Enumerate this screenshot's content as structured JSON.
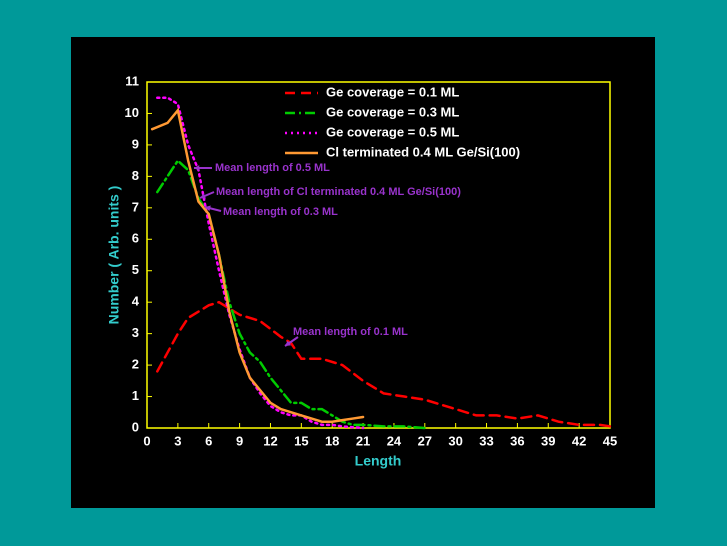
{
  "chart_data": {
    "type": "line",
    "xlabel": "Length",
    "ylabel": "Number ( Arb. units )",
    "xlim": [
      0,
      45
    ],
    "xticks": [
      0,
      3,
      6,
      9,
      12,
      15,
      18,
      21,
      24,
      27,
      30,
      33,
      36,
      39,
      42,
      45
    ],
    "ylim": [
      0,
      11
    ],
    "yticks": [
      0,
      1,
      2,
      3,
      4,
      5,
      6,
      7,
      8,
      9,
      10,
      11
    ],
    "legend": "upper center",
    "series": [
      {
        "name": "Ge coverage = 0.1 ML",
        "color": "#ff0000",
        "linestyle": "dashed",
        "x": [
          1,
          3,
          4,
          6,
          7,
          9,
          11,
          13,
          14,
          15,
          17,
          19,
          21,
          23,
          25,
          27,
          30,
          32,
          34,
          36,
          38,
          40,
          42,
          44,
          45
        ],
        "values": [
          1.8,
          3,
          3.5,
          3.9,
          4,
          3.6,
          3.4,
          2.9,
          2.7,
          2.2,
          2.2,
          2,
          1.5,
          1.1,
          1,
          0.9,
          0.6,
          0.4,
          0.4,
          0.3,
          0.4,
          0.2,
          0.1,
          0.1,
          0.05
        ]
      },
      {
        "name": "Ge coverage = 0.3 ML",
        "color": "#00cc00",
        "linestyle": "dashdot",
        "x": [
          1,
          2,
          3,
          4,
          5,
          6,
          7,
          8,
          9,
          10,
          11,
          12,
          13,
          14,
          15,
          16,
          17,
          18,
          19,
          20,
          21,
          23,
          25,
          27
        ],
        "values": [
          7.5,
          8,
          8.5,
          8.2,
          7.3,
          6.8,
          5.5,
          4,
          3,
          2.4,
          2.1,
          1.6,
          1.2,
          0.8,
          0.8,
          0.6,
          0.6,
          0.4,
          0.2,
          0.1,
          0.1,
          0.05,
          0.05,
          0
        ]
      },
      {
        "name": "Ge coverage = 0.5 ML",
        "color": "#ff00ff",
        "linestyle": "dotted",
        "x": [
          1,
          2,
          3,
          4,
          5,
          6,
          7,
          8,
          9,
          10,
          11,
          12,
          13,
          14,
          15,
          16,
          17,
          18,
          19,
          21
        ],
        "values": [
          10.5,
          10.5,
          10.3,
          9,
          8.2,
          6.5,
          5,
          3.6,
          2.5,
          1.6,
          1.1,
          0.7,
          0.5,
          0.4,
          0.4,
          0.2,
          0.1,
          0.1,
          0.05,
          0
        ]
      },
      {
        "name": "Cl terminated 0.4 ML Ge/Si(100)",
        "color": "#ff9933",
        "linestyle": "solid",
        "x": [
          0.5,
          2,
          3,
          4,
          5,
          6,
          7,
          8,
          9,
          10,
          11,
          12,
          13,
          15,
          16,
          17,
          18,
          19,
          20,
          21
        ],
        "values": [
          9.5,
          9.7,
          10.1,
          8.5,
          7.2,
          6.8,
          5.5,
          3.7,
          2.4,
          1.6,
          1.2,
          0.8,
          0.6,
          0.4,
          0.3,
          0.2,
          0.2,
          0.25,
          0.3,
          0.35
        ]
      }
    ],
    "annotations": [
      "Mean length of 0.5 ML",
      "Mean length of Cl terminated 0.4 ML Ge/Si(100)",
      "Mean length of 0.3 ML",
      "Mean length of 0.1 ML"
    ]
  }
}
